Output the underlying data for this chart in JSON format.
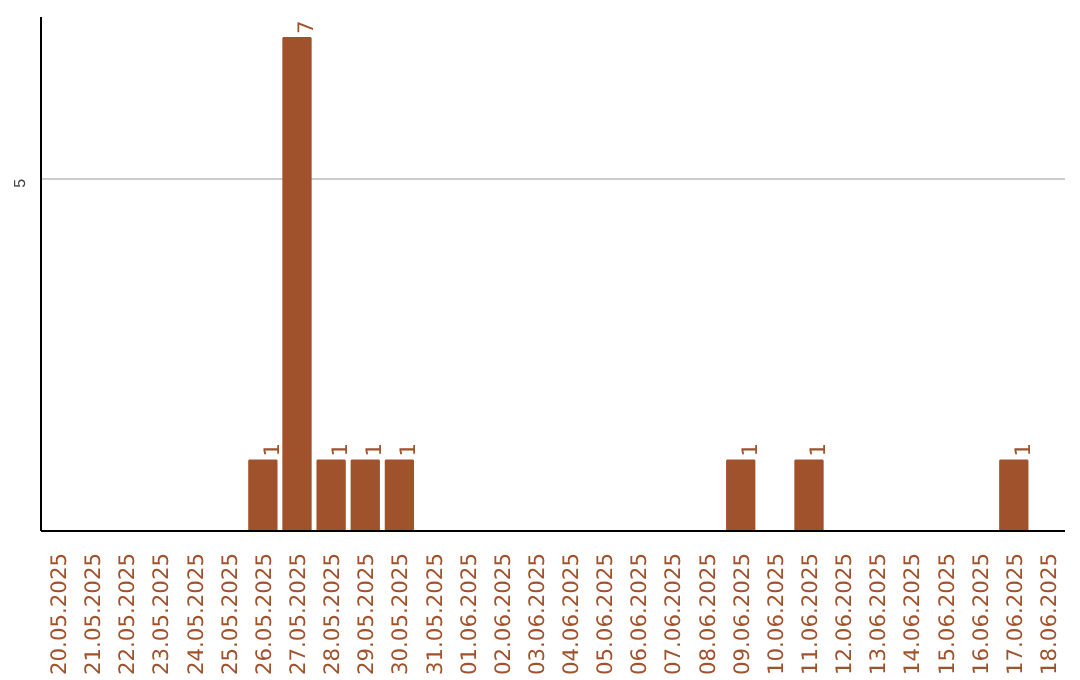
{
  "chart_data": {
    "type": "bar",
    "categories": [
      "20.05.2025",
      "21.05.2025",
      "22.05.2025",
      "23.05.2025",
      "24.05.2025",
      "25.05.2025",
      "26.05.2025",
      "27.05.2025",
      "28.05.2025",
      "29.05.2025",
      "30.05.2025",
      "31.05.2025",
      "01.06.2025",
      "02.06.2025",
      "03.06.2025",
      "04.06.2025",
      "05.06.2025",
      "06.06.2025",
      "07.06.2025",
      "08.06.2025",
      "09.06.2025",
      "10.06.2025",
      "11.06.2025",
      "12.06.2025",
      "13.06.2025",
      "14.06.2025",
      "15.06.2025",
      "16.06.2025",
      "17.06.2025",
      "18.06.2025"
    ],
    "values": [
      0,
      0,
      0,
      0,
      0,
      0,
      1,
      7,
      1,
      1,
      1,
      0,
      0,
      0,
      0,
      0,
      0,
      0,
      0,
      0,
      1,
      0,
      1,
      0,
      0,
      0,
      0,
      0,
      1,
      0
    ],
    "value_labels": [
      null,
      null,
      null,
      null,
      null,
      null,
      "1",
      "7",
      "1",
      "1",
      "1",
      null,
      null,
      null,
      null,
      null,
      null,
      null,
      null,
      null,
      "1",
      null,
      "1",
      null,
      null,
      null,
      null,
      null,
      "1",
      null
    ],
    "color": "#a0522d",
    "ylim": [
      0,
      7.3
    ],
    "yticks": [
      5
    ],
    "grid": "y"
  }
}
